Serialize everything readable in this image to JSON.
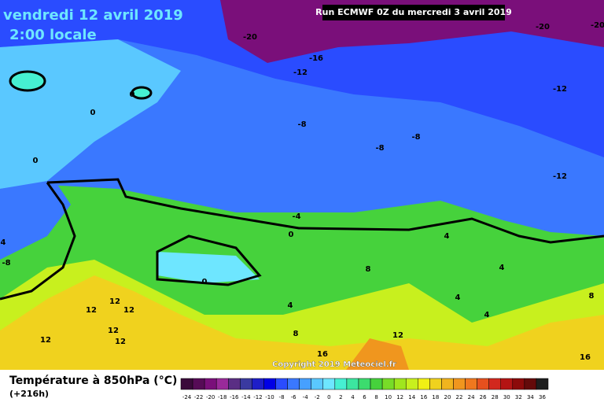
{
  "header": {
    "date": "vendredi 12 avril 2019",
    "time": "2:00 locale",
    "run": "Run ECMWF 0Z du mercredi 3 avril 2019"
  },
  "map": {
    "contour_labels": [
      -20,
      -20,
      -20,
      -16,
      -12,
      -12,
      -12,
      -8,
      -8,
      -8,
      -8,
      -4,
      0,
      0,
      0,
      0,
      0,
      4,
      4,
      4,
      4,
      4,
      4,
      8,
      8,
      8,
      12,
      12,
      12,
      12,
      12,
      12,
      12,
      16,
      16
    ],
    "copyright": "Copyright 2019 Meteociel.fr"
  },
  "legend": {
    "title": "Température à 850hPa (°C)",
    "lead": "(+216h)",
    "ticks": [
      -24,
      -22,
      -20,
      -18,
      -16,
      -14,
      -12,
      -10,
      -8,
      -6,
      -4,
      -2,
      0,
      2,
      4,
      6,
      8,
      10,
      12,
      14,
      16,
      18,
      20,
      22,
      24,
      26,
      28,
      30,
      32,
      34,
      36
    ],
    "colors": [
      "#3a0a3a",
      "#560b56",
      "#7a0f7a",
      "#9a2a9a",
      "#5a2e84",
      "#3a3aa0",
      "#1e1ec8",
      "#0000e6",
      "#2a4cff",
      "#3a78ff",
      "#46a0ff",
      "#5ac8ff",
      "#6ee6ff",
      "#46f0d2",
      "#3ce6a0",
      "#3cdc6e",
      "#46d23c",
      "#78dc28",
      "#a0e61e",
      "#c8f01e",
      "#f0f014",
      "#f0d21e",
      "#f0b41e",
      "#f0961e",
      "#f0781e",
      "#e6501e",
      "#d2281e",
      "#b41414",
      "#8c0a0a",
      "#640a0a",
      "#1e1e1e"
    ]
  }
}
